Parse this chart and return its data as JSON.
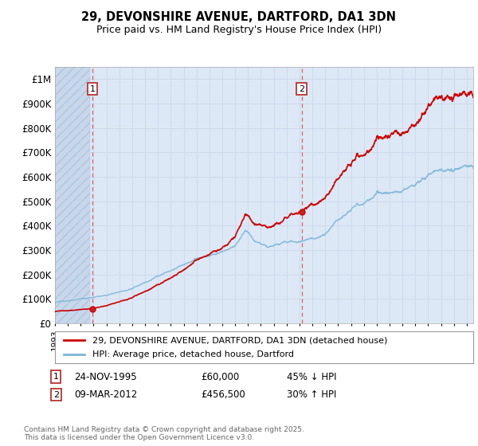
{
  "title_line1": "29, DEVONSHIRE AVENUE, DARTFORD, DA1 3DN",
  "title_line2": "Price paid vs. HM Land Registry's House Price Index (HPI)",
  "ylim": [
    0,
    1050000
  ],
  "yticks": [
    0,
    100000,
    200000,
    300000,
    400000,
    500000,
    600000,
    700000,
    800000,
    900000,
    1000000
  ],
  "ytick_labels": [
    "£0",
    "£100K",
    "£200K",
    "£300K",
    "£400K",
    "£500K",
    "£600K",
    "£700K",
    "£800K",
    "£900K",
    "£1M"
  ],
  "sale1_date_num": 1995.9,
  "sale1_price": 60000,
  "sale1_label": "24-NOV-1995",
  "sale1_amount": "£60,000",
  "sale1_hpi": "45% ↓ HPI",
  "sale2_date_num": 2012.17,
  "sale2_price": 456500,
  "sale2_label": "09-MAR-2012",
  "sale2_amount": "£456,500",
  "sale2_hpi": "30% ↑ HPI",
  "hpi_color": "#7ab4d8",
  "price_color": "#cc0000",
  "marker_color": "#cc0000",
  "vline_color": "#e06060",
  "grid_color": "#c8d4e8",
  "bg_color": "#dce8f5",
  "legend_label1": "29, DEVONSHIRE AVENUE, DARTFORD, DA1 3DN (detached house)",
  "legend_label2": "HPI: Average price, detached house, Dartford",
  "copyright_text": "Contains HM Land Registry data © Crown copyright and database right 2025.\nThis data is licensed under the Open Government Licence v3.0.",
  "xlim_start": 1993.0,
  "xlim_end": 2025.5
}
